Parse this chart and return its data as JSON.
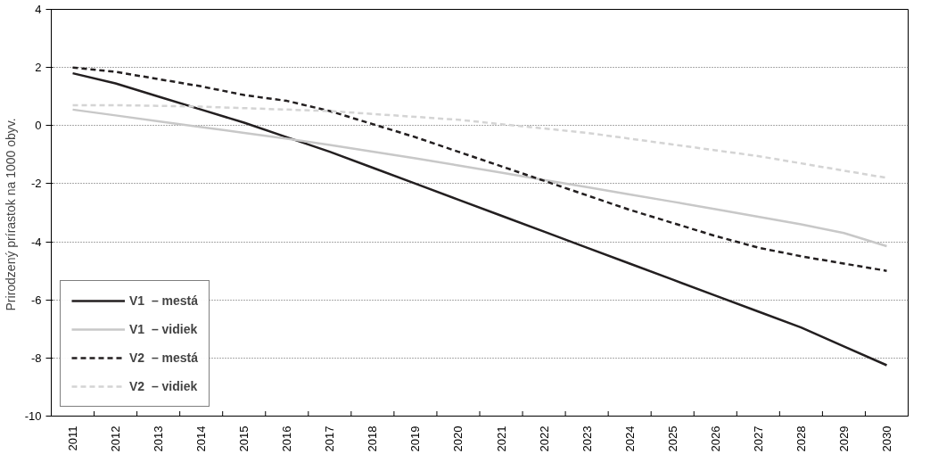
{
  "chart_data": {
    "type": "line",
    "ylabel": "Prirodzený prírastok na 1000  obyv.",
    "categories": [
      "2011",
      "2012",
      "2013",
      "2014",
      "2015",
      "2016",
      "2017",
      "2018",
      "2019",
      "2020",
      "2021",
      "2022",
      "2023",
      "2024",
      "2025",
      "2026",
      "2027",
      "2028",
      "2029",
      "2030"
    ],
    "series": [
      {
        "name": "V1  – mestá",
        "color": "#231f20",
        "line_style": "solid",
        "values": [
          1.8,
          1.45,
          1.0,
          0.55,
          0.1,
          -0.4,
          -0.9,
          -1.45,
          -2.0,
          -2.55,
          -3.1,
          -3.65,
          -4.2,
          -4.75,
          -5.3,
          -5.85,
          -6.4,
          -6.95,
          -7.6,
          -8.25
        ]
      },
      {
        "name": "V1  – vidiek",
        "color": "#c8c8c8",
        "line_style": "solid",
        "values": [
          0.55,
          0.35,
          0.15,
          -0.05,
          -0.25,
          -0.45,
          -0.67,
          -0.9,
          -1.13,
          -1.37,
          -1.62,
          -1.87,
          -2.12,
          -2.37,
          -2.62,
          -2.88,
          -3.14,
          -3.4,
          -3.7,
          -4.15
        ]
      },
      {
        "name": "V2  – mestá",
        "color": "#231f20",
        "line_style": "dashed",
        "values": [
          2.0,
          1.85,
          1.6,
          1.35,
          1.05,
          0.85,
          0.5,
          0.05,
          -0.4,
          -0.9,
          -1.4,
          -1.9,
          -2.4,
          -2.9,
          -3.35,
          -3.8,
          -4.2,
          -4.5,
          -4.75,
          -5.0
        ]
      },
      {
        "name": "V2  – vidiek",
        "color": "#d4d4d4",
        "line_style": "dashed",
        "values": [
          0.7,
          0.7,
          0.68,
          0.65,
          0.6,
          0.55,
          0.5,
          0.4,
          0.3,
          0.2,
          0.05,
          -0.1,
          -0.25,
          -0.45,
          -0.65,
          -0.85,
          -1.05,
          -1.3,
          -1.55,
          -1.8
        ]
      }
    ],
    "ylim": [
      -10,
      4
    ],
    "yticks": [
      -10,
      -8,
      -6,
      -4,
      -2,
      0,
      2,
      4
    ],
    "grid": "y",
    "legend": "bottom left",
    "marker": "none"
  }
}
